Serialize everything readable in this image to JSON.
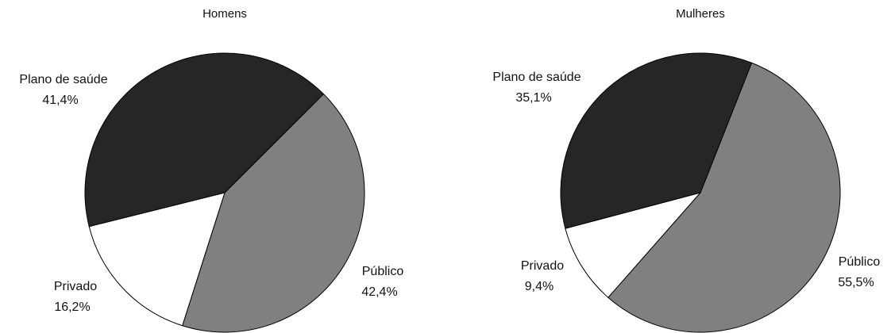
{
  "chart_data": [
    {
      "type": "pie",
      "title": "Homens",
      "categories": [
        "Público",
        "Privado",
        "Plano de saúde"
      ],
      "values": [
        42.4,
        16.2,
        41.4
      ],
      "value_labels": [
        "42,4%",
        "16,2%",
        "41,4%"
      ],
      "colors": [
        "#808080",
        "#ffffff",
        "#262626"
      ]
    },
    {
      "type": "pie",
      "title": "Mulheres",
      "categories": [
        "Público",
        "Privado",
        "Plano de saúde"
      ],
      "values": [
        55.5,
        9.4,
        35.1
      ],
      "value_labels": [
        "55,5%",
        "9,4%",
        "35,1%"
      ],
      "colors": [
        "#808080",
        "#ffffff",
        "#262626"
      ]
    }
  ]
}
